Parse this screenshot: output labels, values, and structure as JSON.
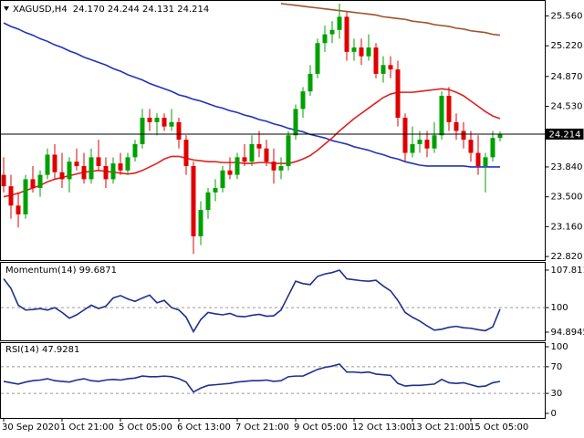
{
  "chart_data": [
    {
      "type": "candlestick",
      "title": "XAGUSD,H4",
      "subtitle": "24.170 24.244 24.131 24.214",
      "categories": [
        "30 Sep 2020",
        null,
        null,
        null,
        null,
        null,
        null,
        null,
        "1 Oct 21:00",
        null,
        null,
        null,
        null,
        null,
        null,
        null,
        "5 Oct 05:00",
        null,
        null,
        null,
        null,
        null,
        null,
        null,
        "6 Oct 13:00",
        null,
        null,
        null,
        null,
        null,
        null,
        null,
        "7 Oct 21:00",
        null,
        null,
        null,
        null,
        null,
        null,
        null,
        "9 Oct 05:00",
        null,
        null,
        null,
        null,
        null,
        null,
        null,
        "12 Oct 13:00",
        null,
        null,
        null,
        null,
        null,
        null,
        null,
        "13 Oct 21:00",
        null,
        null,
        null,
        null,
        null,
        null,
        null,
        "15 Oct 05:00",
        null,
        null,
        null,
        null
      ],
      "open": [
        23.75,
        23.62,
        23.4,
        23.3,
        23.7,
        23.6,
        23.75,
        23.98,
        23.78,
        23.7,
        23.9,
        23.85,
        23.7,
        23.95,
        23.85,
        23.7,
        23.88,
        23.8,
        23.95,
        24.1,
        24.4,
        24.35,
        24.4,
        24.3,
        24.35,
        24.15,
        23.85,
        23.05,
        23.35,
        23.55,
        23.6,
        23.8,
        23.75,
        23.95,
        23.9,
        24.1,
        24.05,
        23.9,
        23.8,
        23.85,
        24.2,
        24.5,
        24.7,
        24.9,
        25.25,
        25.35,
        25.4,
        25.55,
        25.15,
        25.2,
        25.1,
        25.2,
        24.9,
        25.0,
        24.95,
        24.4,
        24.0,
        24.1,
        24.15,
        24.05,
        24.2,
        24.65,
        24.35,
        24.25,
        24.15,
        24.0,
        23.85,
        23.95,
        24.17
      ],
      "high": [
        23.95,
        23.75,
        23.55,
        23.75,
        23.85,
        23.8,
        24.05,
        24.1,
        24.0,
        23.95,
        24.05,
        24.0,
        24.05,
        24.15,
        23.95,
        23.95,
        24.0,
        24.0,
        24.15,
        24.5,
        24.5,
        24.45,
        24.45,
        24.5,
        24.4,
        24.2,
        23.9,
        23.45,
        23.6,
        23.7,
        23.85,
        23.95,
        24.0,
        24.1,
        24.2,
        24.25,
        24.15,
        24.05,
        23.95,
        24.25,
        24.55,
        24.75,
        25.0,
        25.3,
        25.45,
        25.5,
        25.7,
        25.6,
        25.3,
        25.3,
        25.35,
        25.25,
        25.1,
        25.1,
        25.05,
        24.45,
        24.3,
        24.25,
        24.25,
        24.35,
        24.7,
        24.75,
        24.45,
        24.35,
        24.25,
        24.2,
        24.0,
        24.25,
        24.244
      ],
      "low": [
        23.55,
        23.25,
        23.15,
        23.25,
        23.55,
        23.5,
        23.7,
        23.7,
        23.6,
        23.55,
        23.8,
        23.65,
        23.65,
        23.8,
        23.6,
        23.65,
        23.75,
        23.75,
        23.9,
        24.05,
        24.25,
        24.2,
        24.25,
        24.25,
        24.05,
        23.75,
        22.85,
        22.95,
        23.25,
        23.45,
        23.55,
        23.7,
        23.7,
        23.85,
        23.85,
        23.95,
        23.85,
        23.65,
        23.7,
        23.8,
        24.15,
        24.4,
        24.65,
        24.85,
        25.15,
        25.25,
        25.3,
        25.05,
        25.05,
        25.0,
        25.05,
        24.85,
        24.8,
        24.85,
        24.3,
        23.9,
        23.95,
        24.0,
        23.95,
        24.0,
        24.15,
        24.25,
        24.15,
        24.05,
        23.9,
        23.75,
        23.55,
        23.9,
        24.131
      ],
      "close": [
        23.62,
        23.4,
        23.3,
        23.7,
        23.6,
        23.75,
        23.98,
        23.78,
        23.7,
        23.9,
        23.85,
        23.7,
        23.95,
        23.85,
        23.7,
        23.88,
        23.8,
        23.95,
        24.1,
        24.4,
        24.35,
        24.4,
        24.3,
        24.35,
        24.15,
        23.85,
        23.05,
        23.35,
        23.55,
        23.6,
        23.8,
        23.75,
        23.95,
        23.9,
        24.1,
        24.05,
        23.9,
        23.8,
        23.85,
        24.2,
        24.5,
        24.7,
        24.9,
        25.25,
        25.35,
        25.4,
        25.55,
        25.15,
        25.2,
        25.1,
        25.2,
        24.9,
        25.0,
        24.95,
        24.4,
        24.0,
        24.1,
        24.15,
        24.05,
        24.2,
        24.65,
        24.35,
        24.25,
        24.15,
        24.0,
        23.85,
        23.95,
        24.17,
        24.214
      ],
      "up_color": "#00a000",
      "down_color": "#e00000",
      "series": [
        {
          "color": "#2233bb",
          "values": [
            25.48,
            25.44,
            25.41,
            25.37,
            25.34,
            25.3,
            25.27,
            25.23,
            25.2,
            25.16,
            25.13,
            25.09,
            25.06,
            25.03,
            25.0,
            24.96,
            24.93,
            24.89,
            24.86,
            24.83,
            24.79,
            24.76,
            24.73,
            24.7,
            24.66,
            24.64,
            24.61,
            24.59,
            24.56,
            24.53,
            24.51,
            24.48,
            24.46,
            24.43,
            24.41,
            24.38,
            24.36,
            24.33,
            24.31,
            24.28,
            24.26,
            24.24,
            24.21,
            24.19,
            24.17,
            24.14,
            24.12,
            24.1,
            24.07,
            24.05,
            24.03,
            24.0,
            23.98,
            23.95,
            23.93,
            23.9,
            23.88,
            23.86,
            23.85,
            23.85,
            23.85,
            23.85,
            23.85,
            23.85,
            23.84,
            23.84,
            23.84,
            23.84,
            23.84
          ]
        },
        {
          "color": "#e02020",
          "values": [
            23.5,
            23.52,
            23.54,
            23.57,
            23.6,
            23.63,
            23.67,
            23.7,
            23.72,
            23.74,
            23.76,
            23.78,
            23.79,
            23.8,
            23.79,
            23.78,
            23.77,
            23.76,
            23.77,
            23.8,
            23.84,
            23.88,
            23.93,
            23.96,
            23.96,
            23.94,
            23.92,
            23.91,
            23.9,
            23.9,
            23.89,
            23.89,
            23.89,
            23.88,
            23.88,
            23.89,
            23.89,
            23.88,
            23.88,
            23.88,
            23.9,
            23.93,
            23.97,
            24.03,
            24.1,
            24.17,
            24.25,
            24.32,
            24.39,
            24.45,
            24.51,
            24.57,
            24.63,
            24.67,
            24.69,
            24.69,
            24.69,
            24.7,
            24.71,
            24.72,
            24.73,
            24.72,
            24.69,
            24.65,
            24.59,
            24.53,
            24.47,
            24.42,
            24.39
          ]
        },
        {
          "color": "#a0522d",
          "values": [
            null,
            null,
            null,
            null,
            null,
            null,
            null,
            null,
            null,
            null,
            null,
            null,
            null,
            null,
            null,
            null,
            null,
            null,
            null,
            null,
            null,
            null,
            null,
            null,
            null,
            null,
            null,
            null,
            null,
            null,
            null,
            null,
            null,
            null,
            null,
            null,
            null,
            null,
            25.7,
            25.69,
            25.68,
            25.67,
            25.66,
            25.65,
            25.64,
            25.63,
            25.62,
            25.61,
            25.6,
            25.59,
            25.58,
            25.57,
            25.55,
            25.54,
            25.53,
            25.52,
            25.5,
            25.49,
            25.48,
            25.46,
            25.45,
            25.44,
            25.42,
            25.41,
            25.39,
            25.38,
            25.37,
            25.35,
            25.34
          ]
        }
      ],
      "last_price": 24.214,
      "ylim": [
        22.79,
        25.72
      ],
      "yticks": [
        {
          "value": 25.56,
          "label": "25.560"
        },
        {
          "value": 25.22,
          "label": "25.220"
        },
        {
          "value": 24.87,
          "label": "24.870"
        },
        {
          "value": 24.53,
          "label": "24.530"
        },
        {
          "value": 23.84,
          "label": "23.840"
        },
        {
          "value": 23.5,
          "label": "23.500"
        },
        {
          "value": 23.16,
          "label": "23.160"
        },
        {
          "value": 22.82,
          "label": "22.820"
        }
      ]
    },
    {
      "type": "line",
      "title": "Momentum(14) 99.6871",
      "series": [
        {
          "color": "#1f2f8f",
          "values": [
            106,
            104,
            100.5,
            99.5,
            99.6,
            99.8,
            99.5,
            100,
            99,
            97.8,
            98.5,
            99.5,
            100.5,
            99.8,
            100.3,
            102,
            102.5,
            101.8,
            101.3,
            102,
            102.6,
            101,
            101.5,
            100,
            99.5,
            98,
            95,
            97.5,
            99,
            98.7,
            98.5,
            98.8,
            98.2,
            98.1,
            98.4,
            98.6,
            98.2,
            98.3,
            99.5,
            102.5,
            105.5,
            105,
            104.8,
            106.5,
            107,
            107.3,
            107.8,
            106,
            105.8,
            105.6,
            105.5,
            105.7,
            104.5,
            103.5,
            101.5,
            99,
            98,
            97.2,
            96.2,
            95.3,
            95.5,
            95.9,
            96.1,
            95.8,
            95.7,
            95.4,
            95.2,
            96,
            99.6871
          ]
        }
      ],
      "ylim": [
        93.37,
        109.33
      ],
      "yticks": [
        107.8115,
        100,
        94.8945
      ],
      "levels": [
        100
      ]
    },
    {
      "type": "line",
      "title": "RSI(14) 47.9281",
      "series": [
        {
          "color": "#1f2f8f",
          "values": [
            48,
            46,
            44,
            47,
            49,
            50,
            52,
            49,
            48,
            47,
            50,
            52,
            49,
            48,
            50,
            51,
            50,
            52,
            53,
            56,
            55,
            55,
            56,
            55,
            52,
            47,
            32,
            38,
            42,
            43,
            44,
            45,
            47,
            48,
            49,
            49,
            50,
            48,
            49,
            55,
            56,
            56,
            61,
            66,
            69,
            71,
            74,
            62,
            62,
            61,
            62,
            59,
            58,
            57,
            45,
            41,
            42,
            42,
            43,
            44,
            51,
            46,
            45,
            46,
            43,
            40,
            41,
            46,
            47.9281
          ]
        }
      ],
      "ylim": [
        0,
        100
      ],
      "yticks": [
        100,
        70,
        30,
        0
      ],
      "levels": [
        70,
        30
      ]
    }
  ]
}
